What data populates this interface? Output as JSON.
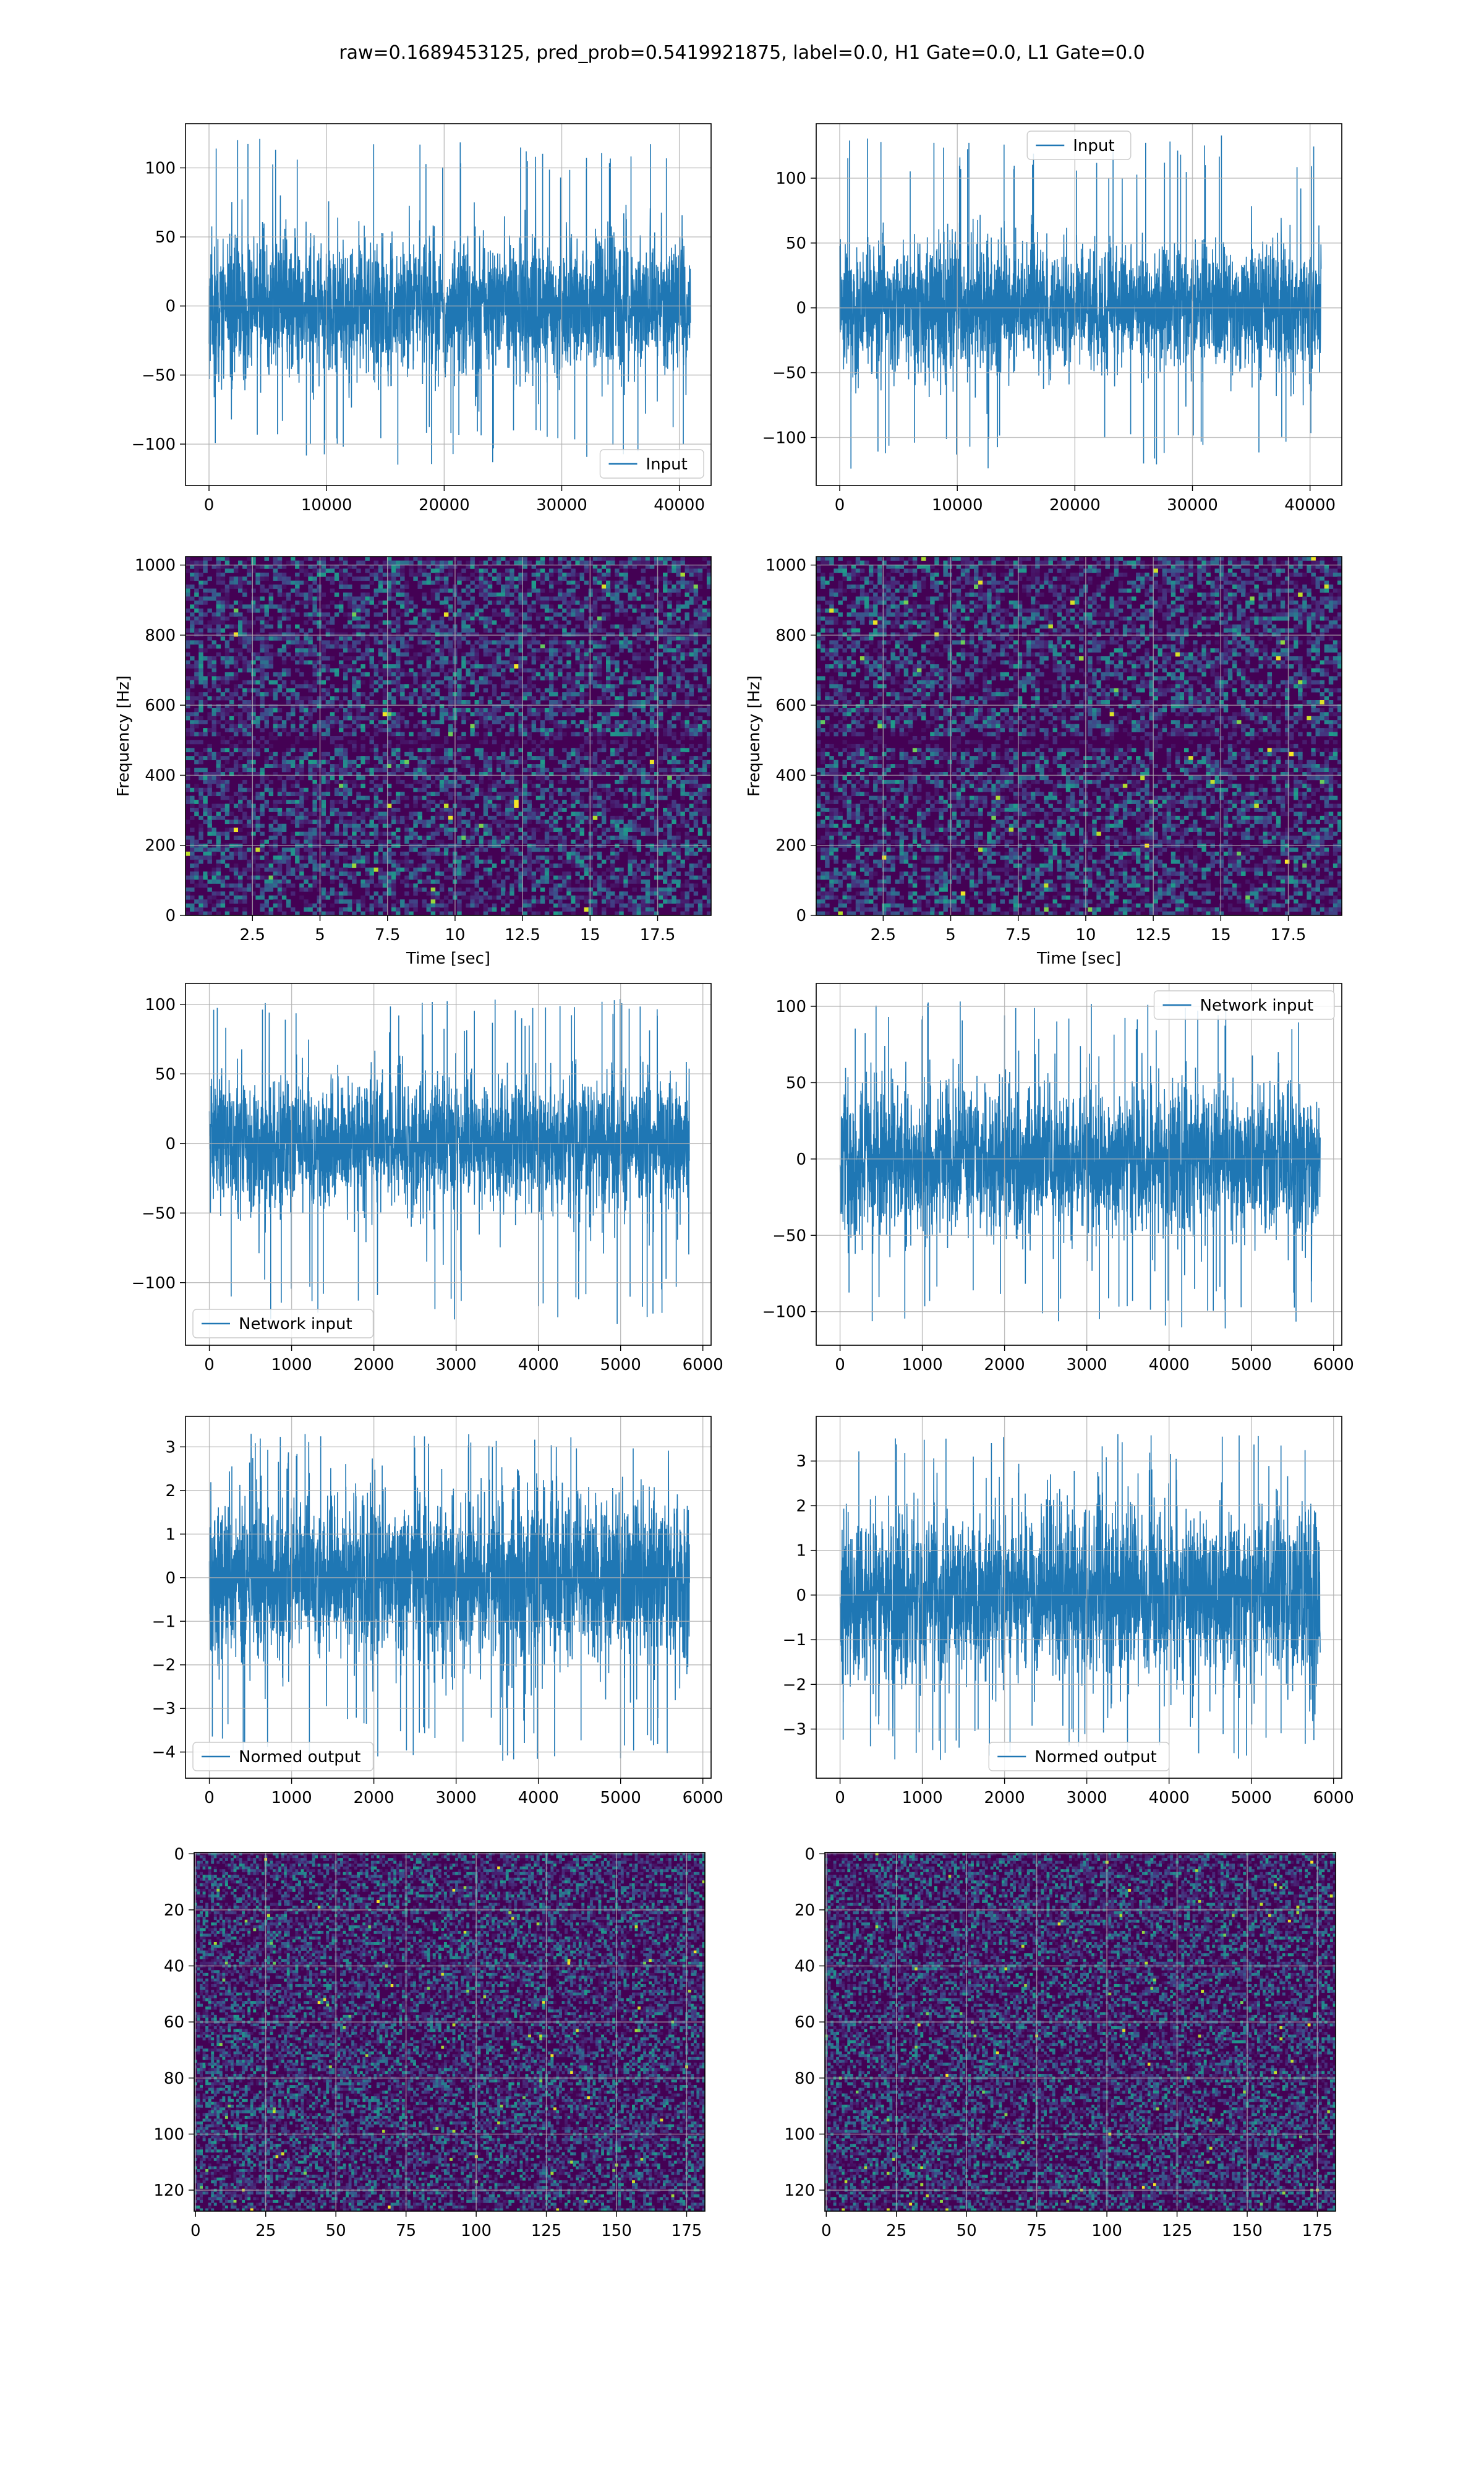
{
  "figure": {
    "title": "raw=0.1689453125, pred_prob=0.5419921875, label=0.0, H1 Gate=0.0, L1 Gate=0.0"
  },
  "colors": {
    "line": "#1f77b4",
    "grid": "#b0b0b0",
    "viridis_dark": "#440154"
  },
  "chart_data": [
    {
      "id": "p1",
      "type": "line",
      "series": [
        {
          "name": "Input"
        }
      ],
      "xlim": [
        -2000,
        42700
      ],
      "ylim": [
        -130,
        132
      ],
      "xticks": [
        0,
        10000,
        20000,
        30000,
        40000
      ],
      "yticks": [
        -100,
        -50,
        0,
        50,
        100
      ],
      "n_samples": 40960,
      "sigma": 24,
      "amp_min": -115,
      "amp_max": 121,
      "legend": "lower right",
      "grid": true,
      "seed": 11
    },
    {
      "id": "p2",
      "type": "line",
      "series": [
        {
          "name": "Input"
        }
      ],
      "xlim": [
        -2000,
        42700
      ],
      "ylim": [
        -137,
        142
      ],
      "xticks": [
        0,
        10000,
        20000,
        30000,
        40000
      ],
      "yticks": [
        -100,
        -50,
        0,
        50,
        100
      ],
      "n_samples": 40960,
      "sigma": 24,
      "amp_min": -124,
      "amp_max": 133,
      "legend": "upper center",
      "grid": true,
      "seed": 23
    },
    {
      "id": "p3",
      "type": "heatmap",
      "subtype": "spectrogram",
      "xlim": [
        0.02,
        19.48
      ],
      "ylim": [
        0,
        1024
      ],
      "xticks": [
        2.5,
        5.0,
        7.5,
        10.0,
        12.5,
        15.0,
        17.5
      ],
      "yticks": [
        0,
        200,
        400,
        600,
        800,
        1000
      ],
      "xlabel": "Time [sec]",
      "ylabel": "Frequency [Hz]",
      "grid": true,
      "seed": 37
    },
    {
      "id": "p4",
      "type": "heatmap",
      "subtype": "spectrogram",
      "xlim": [
        0.02,
        19.48
      ],
      "ylim": [
        0,
        1024
      ],
      "xticks": [
        2.5,
        5.0,
        7.5,
        10.0,
        12.5,
        15.0,
        17.5
      ],
      "yticks": [
        0,
        200,
        400,
        600,
        800,
        1000
      ],
      "xlabel": "Time [sec]",
      "ylabel": "Frequency [Hz]",
      "grid": true,
      "seed": 41
    },
    {
      "id": "p5",
      "type": "line",
      "series": [
        {
          "name": "Network input"
        }
      ],
      "xlim": [
        -290,
        6100
      ],
      "ylim": [
        -145,
        115
      ],
      "xticks": [
        0,
        1000,
        2000,
        3000,
        4000,
        5000,
        6000
      ],
      "yticks": [
        -100,
        -50,
        0,
        50,
        100
      ],
      "n_samples": 5840,
      "sigma": 23,
      "amp_min": -130,
      "amp_max": 104,
      "legend": "lower left",
      "grid": true,
      "seed": 53
    },
    {
      "id": "p6",
      "type": "line",
      "series": [
        {
          "name": "Network input"
        }
      ],
      "xlim": [
        -290,
        6100
      ],
      "ylim": [
        -122,
        115
      ],
      "xticks": [
        0,
        1000,
        2000,
        3000,
        4000,
        5000,
        6000
      ],
      "yticks": [
        -100,
        -50,
        0,
        50,
        100
      ],
      "n_samples": 5840,
      "sigma": 23,
      "amp_min": -111,
      "amp_max": 104,
      "legend": "upper right",
      "grid": true,
      "seed": 67
    },
    {
      "id": "p7",
      "type": "line",
      "series": [
        {
          "name": "Normed output"
        }
      ],
      "xlim": [
        -290,
        6100
      ],
      "ylim": [
        -4.6,
        3.7
      ],
      "xticks": [
        0,
        1000,
        2000,
        3000,
        4000,
        5000,
        6000
      ],
      "yticks": [
        -4,
        -3,
        -2,
        -1,
        0,
        1,
        2,
        3
      ],
      "n_samples": 5840,
      "sigma": 0.95,
      "amp_min": -4.2,
      "amp_max": 3.3,
      "legend": "lower left",
      "grid": true,
      "seed": 71
    },
    {
      "id": "p8",
      "type": "line",
      "series": [
        {
          "name": "Normed output"
        }
      ],
      "xlim": [
        -290,
        6100
      ],
      "ylim": [
        -4.1,
        4.0
      ],
      "xticks": [
        0,
        1000,
        2000,
        3000,
        4000,
        5000,
        6000
      ],
      "yticks": [
        -3,
        -2,
        -1,
        0,
        1,
        2,
        3
      ],
      "n_samples": 5840,
      "sigma": 0.95,
      "amp_min": -3.7,
      "amp_max": 3.6,
      "legend": "lower center",
      "grid": true,
      "seed": 83
    },
    {
      "id": "p9",
      "type": "heatmap",
      "subtype": "image",
      "cols": 182,
      "rows": 128,
      "xlim": [
        -0.5,
        181.5
      ],
      "ylim": [
        127.5,
        -0.5
      ],
      "xticks": [
        0,
        25,
        50,
        75,
        100,
        125,
        150,
        175
      ],
      "yticks": [
        0,
        20,
        40,
        60,
        80,
        100,
        120
      ],
      "grid": true,
      "seed": 97
    },
    {
      "id": "p10",
      "type": "heatmap",
      "subtype": "image",
      "cols": 182,
      "rows": 128,
      "xlim": [
        -0.5,
        181.5
      ],
      "ylim": [
        127.5,
        -0.5
      ],
      "xticks": [
        0,
        25,
        50,
        75,
        100,
        125,
        150,
        175
      ],
      "yticks": [
        0,
        20,
        40,
        60,
        80,
        100,
        120
      ],
      "grid": true,
      "seed": 101
    }
  ]
}
